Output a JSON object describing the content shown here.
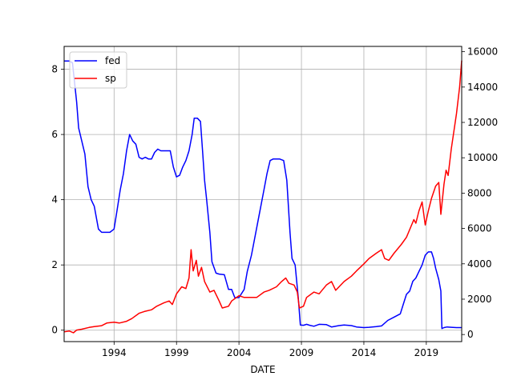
{
  "chart_data": {
    "type": "line",
    "xlabel": "DATE",
    "x_axis": {
      "type": "date",
      "range": [
        "1990-01-01",
        "2021-11-01"
      ],
      "tick_labels": [
        "1994",
        "1999",
        "2004",
        "2009",
        "2014",
        "2019"
      ],
      "grid": true
    },
    "y_left": {
      "range": [
        -0.35,
        8.7
      ],
      "tick_labels": [
        "0",
        "2",
        "4",
        "6",
        "8"
      ]
    },
    "y_right": {
      "range": [
        -400,
        16300
      ],
      "tick_labels": [
        "0",
        "2000",
        "4000",
        "6000",
        "8000",
        "10000",
        "12000",
        "14000",
        "16000"
      ]
    },
    "legend": {
      "placement": "upper-left",
      "entries": [
        "fed",
        "sp"
      ]
    },
    "series": [
      {
        "name": "fed",
        "axis": "left",
        "color": "#0000ff",
        "x": [
          "1990-01",
          "1990-06",
          "1990-09",
          "1991-01",
          "1991-03",
          "1991-06",
          "1991-09",
          "1991-12",
          "1992-03",
          "1992-06",
          "1992-10",
          "1993-01",
          "1993-06",
          "1993-09",
          "1994-01",
          "1994-04",
          "1994-07",
          "1994-10",
          "1995-01",
          "1995-04",
          "1995-07",
          "1995-10",
          "1996-01",
          "1996-04",
          "1996-07",
          "1996-10",
          "1997-01",
          "1997-04",
          "1997-07",
          "1997-10",
          "1998-01",
          "1998-04",
          "1998-07",
          "1998-10",
          "1999-01",
          "1999-04",
          "1999-07",
          "1999-10",
          "2000-01",
          "2000-04",
          "2000-06",
          "2000-09",
          "2000-12",
          "2001-02",
          "2001-04",
          "2001-06",
          "2001-09",
          "2001-11",
          "2002-03",
          "2002-06",
          "2002-11",
          "2003-03",
          "2003-06",
          "2003-09",
          "2004-01",
          "2004-06",
          "2004-09",
          "2005-01",
          "2005-04",
          "2005-07",
          "2005-10",
          "2006-01",
          "2006-04",
          "2006-07",
          "2006-10",
          "2007-01",
          "2007-04",
          "2007-08",
          "2007-11",
          "2008-02",
          "2008-04",
          "2008-07",
          "2008-10",
          "2008-12",
          "2009-03",
          "2009-06",
          "2009-09",
          "2010-01",
          "2010-06",
          "2011-01",
          "2011-06",
          "2012-01",
          "2012-06",
          "2013-01",
          "2013-06",
          "2014-01",
          "2014-06",
          "2015-01",
          "2015-06",
          "2015-12",
          "2016-06",
          "2016-12",
          "2017-03",
          "2017-06",
          "2017-09",
          "2017-12",
          "2018-03",
          "2018-06",
          "2018-09",
          "2018-12",
          "2019-03",
          "2019-06",
          "2019-08",
          "2019-10",
          "2020-01",
          "2020-03",
          "2020-04",
          "2020-06",
          "2020-09",
          "2021-01",
          "2021-06",
          "2021-11"
        ],
        "values": [
          8.25,
          8.25,
          8.2,
          7.0,
          6.2,
          5.8,
          5.4,
          4.4,
          4.0,
          3.8,
          3.1,
          3.0,
          3.0,
          3.0,
          3.1,
          3.7,
          4.3,
          4.8,
          5.5,
          6.0,
          5.8,
          5.7,
          5.3,
          5.25,
          5.3,
          5.25,
          5.25,
          5.45,
          5.55,
          5.5,
          5.5,
          5.5,
          5.5,
          5.0,
          4.7,
          4.75,
          5.0,
          5.2,
          5.5,
          6.0,
          6.5,
          6.5,
          6.4,
          5.5,
          4.6,
          4.0,
          3.0,
          2.1,
          1.75,
          1.72,
          1.7,
          1.25,
          1.25,
          1.0,
          1.0,
          1.25,
          1.8,
          2.3,
          2.8,
          3.3,
          3.8,
          4.3,
          4.8,
          5.2,
          5.25,
          5.25,
          5.25,
          5.2,
          4.6,
          3.0,
          2.2,
          2.0,
          1.0,
          0.16,
          0.15,
          0.18,
          0.15,
          0.12,
          0.18,
          0.17,
          0.1,
          0.14,
          0.16,
          0.14,
          0.1,
          0.08,
          0.09,
          0.11,
          0.13,
          0.3,
          0.4,
          0.5,
          0.8,
          1.1,
          1.2,
          1.5,
          1.6,
          1.8,
          2.0,
          2.3,
          2.4,
          2.4,
          2.2,
          1.9,
          1.55,
          1.2,
          0.05,
          0.08,
          0.1,
          0.09,
          0.08,
          0.08
        ]
      },
      {
        "name": "sp",
        "axis": "right",
        "color": "#ff0000",
        "x": [
          "1990-01",
          "1990-06",
          "1990-10",
          "1991-01",
          "1991-06",
          "1992-01",
          "1992-06",
          "1993-01",
          "1993-06",
          "1994-01",
          "1994-06",
          "1995-01",
          "1995-06",
          "1996-01",
          "1996-06",
          "1997-01",
          "1997-06",
          "1998-01",
          "1998-06",
          "1998-09",
          "1999-01",
          "1999-06",
          "1999-10",
          "2000-01",
          "2000-03",
          "2000-05",
          "2000-08",
          "2000-10",
          "2001-01",
          "2001-04",
          "2001-09",
          "2002-01",
          "2002-06",
          "2002-09",
          "2003-03",
          "2003-06",
          "2004-01",
          "2004-06",
          "2005-01",
          "2005-06",
          "2006-01",
          "2006-06",
          "2007-01",
          "2007-06",
          "2007-10",
          "2008-01",
          "2008-06",
          "2008-09",
          "2008-11",
          "2009-03",
          "2009-06",
          "2010-01",
          "2010-06",
          "2011-01",
          "2011-06",
          "2011-10",
          "2012-06",
          "2013-01",
          "2013-06",
          "2014-01",
          "2014-06",
          "2015-01",
          "2015-06",
          "2015-09",
          "2016-01",
          "2016-06",
          "2017-01",
          "2017-06",
          "2018-01",
          "2018-03",
          "2018-06",
          "2018-09",
          "2018-12",
          "2019-03",
          "2019-06",
          "2019-10",
          "2020-01",
          "2020-03",
          "2020-06",
          "2020-08",
          "2020-10",
          "2021-01",
          "2021-06",
          "2021-09",
          "2021-11"
        ],
        "values": [
          150,
          200,
          100,
          250,
          300,
          400,
          450,
          500,
          650,
          700,
          650,
          750,
          900,
          1200,
          1300,
          1400,
          1600,
          1800,
          1900,
          1700,
          2300,
          2700,
          2600,
          3200,
          4800,
          3600,
          4200,
          3300,
          3800,
          3000,
          2400,
          2500,
          1900,
          1500,
          1600,
          1900,
          2200,
          2100,
          2100,
          2100,
          2400,
          2500,
          2700,
          3000,
          3200,
          2900,
          2800,
          2400,
          1500,
          1600,
          2100,
          2400,
          2300,
          2800,
          3000,
          2500,
          3000,
          3300,
          3600,
          4000,
          4300,
          4600,
          4800,
          4300,
          4200,
          4600,
          5100,
          5500,
          6500,
          6300,
          7000,
          7500,
          6200,
          7000,
          7700,
          8400,
          8600,
          6800,
          8500,
          9300,
          9000,
          10500,
          12500,
          14000,
          15500
        ]
      }
    ]
  }
}
